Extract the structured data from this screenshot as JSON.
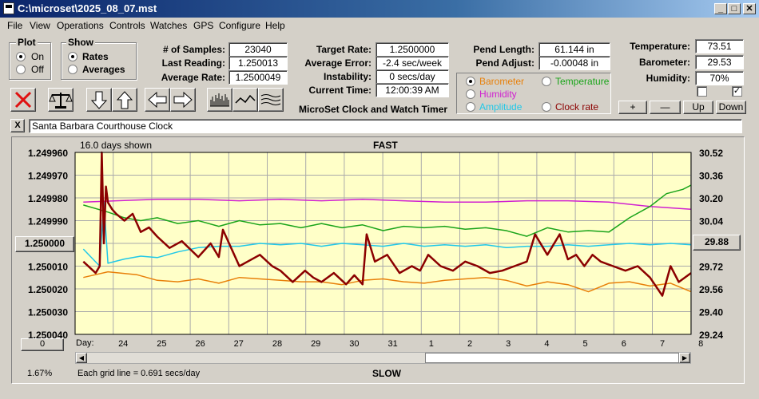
{
  "window": {
    "title": "C:\\microset\\2025_08_07.mst"
  },
  "menu": [
    "File",
    "View",
    "Operations",
    "Controls",
    "Watches",
    "GPS",
    "Configure",
    "Help"
  ],
  "plot_group": {
    "title": "Plot",
    "on": "On",
    "off": "Off",
    "selected": "On"
  },
  "show_group": {
    "title": "Show",
    "rates": "Rates",
    "averages": "Averages",
    "selected": "Rates"
  },
  "stats": {
    "samples_label": "# of Samples:",
    "samples": "23040",
    "last_label": "Last Reading:",
    "last": "1.250013",
    "avg_label": "Average Rate:",
    "avg": "1.2500049"
  },
  "rate": {
    "target_label": "Target Rate:",
    "target": "1.2500000",
    "error_label": "Average Error:",
    "error": "-2.4 sec/week",
    "instab_label": "Instability:",
    "instab": "0 secs/day",
    "time_label": "Current Time:",
    "time": "12:00:39 AM"
  },
  "pend": {
    "length_label": "Pend Length:",
    "length": "61.144 in",
    "adjust_label": "Pend Adjust:",
    "adjust": "-0.00048 in"
  },
  "env": {
    "temp_label": "Temperature:",
    "temp": "73.51",
    "baro_label": "Barometer:",
    "baro": "29.53",
    "hum_label": "Humidity:",
    "hum": "70%"
  },
  "aux_select": {
    "options": [
      {
        "label": "Barometer",
        "color": "#e8800a",
        "selected": true
      },
      {
        "label": "Temperature",
        "color": "#1aa41a",
        "selected": false
      },
      {
        "label": "Humidity",
        "color": "#d020d0",
        "selected": false
      },
      {
        "label": "Amplitude",
        "color": "#20c8e8",
        "selected": false
      },
      {
        "label": "Clock rate",
        "color": "#8b0000",
        "selected": false
      }
    ]
  },
  "env_buttons": {
    "plus": "+",
    "minus": "—",
    "up": "Up",
    "down": "Down"
  },
  "checks": {
    "left": false,
    "right": true
  },
  "program_title": "MicroSet Clock and Watch Timer",
  "clock_name": "Santa Barbara Courthouse Clock",
  "clear_x": "X",
  "chart_data": {
    "type": "line",
    "top_label": "FAST",
    "bottom_label": "SLOW",
    "days_shown": "16.0 days shown",
    "grid_note": "Each grid line = 0.691 secs/day",
    "percent": "1.67%",
    "left_axis": {
      "ticks": [
        "1.249960",
        "1.249970",
        "1.249980",
        "1.249990",
        "1.250000",
        "1.250010",
        "1.250020",
        "1.250030",
        "1.250040"
      ],
      "center_value": "1.250000",
      "range": [
        1.24996,
        1.25004
      ]
    },
    "right_axis": {
      "ticks": [
        "30.52",
        "30.36",
        "30.20",
        "30.04",
        "29.88",
        "29.72",
        "29.56",
        "29.40",
        "29.24"
      ],
      "center_value": "29.88",
      "range": [
        29.24,
        30.52
      ]
    },
    "x_axis": {
      "label": "Day:",
      "ticks": [
        "24",
        "25",
        "26",
        "27",
        "28",
        "29",
        "30",
        "31",
        "1",
        "2",
        "3",
        "4",
        "5",
        "6",
        "7",
        "8"
      ]
    },
    "scroll_value": "0",
    "series": [
      {
        "name": "Clock rate",
        "color": "#8b0000",
        "x": [
          23.2,
          23.5,
          23.6,
          23.65,
          23.7,
          23.75,
          23.8,
          23.9,
          24.0,
          24.2,
          24.4,
          24.6,
          24.8,
          25.0,
          25.3,
          25.6,
          26.0,
          26.3,
          26.5,
          26.6,
          26.8,
          27.0,
          27.2,
          27.5,
          27.8,
          28.0,
          28.3,
          28.6,
          28.8,
          29.0,
          29.3,
          29.6,
          29.8,
          30.0,
          30.1,
          30.3,
          30.6,
          30.9,
          31.2,
          31.4,
          31.6,
          31.9,
          32.2,
          32.5,
          32.8,
          33.1,
          33.4,
          33.7,
          34.0,
          34.2,
          34.5,
          34.8,
          35.0,
          35.2,
          35.4,
          35.6,
          35.8,
          36.1,
          36.4,
          36.7,
          37.0,
          37.3,
          37.5,
          37.7,
          38.0
        ],
        "y": [
          1.250008,
          1.250013,
          1.25001,
          1.24996,
          1.25,
          1.249975,
          1.249982,
          1.249985,
          1.249987,
          1.24999,
          1.249987,
          1.249995,
          1.249993,
          1.249997,
          1.250002,
          1.249999,
          1.250006,
          1.25,
          1.250006,
          1.249994,
          1.250002,
          1.25001,
          1.250008,
          1.250005,
          1.25001,
          1.250012,
          1.250017,
          1.250012,
          1.250015,
          1.250017,
          1.250013,
          1.250018,
          1.250014,
          1.250018,
          1.249996,
          1.250008,
          1.250005,
          1.250013,
          1.25001,
          1.250012,
          1.250005,
          1.25001,
          1.250012,
          1.250008,
          1.25001,
          1.250013,
          1.250012,
          1.25001,
          1.250008,
          1.249996,
          1.250005,
          1.249996,
          1.250007,
          1.250005,
          1.25001,
          1.250005,
          1.250008,
          1.25001,
          1.250012,
          1.25001,
          1.250015,
          1.250023,
          1.25001,
          1.250017,
          1.250013
        ]
      },
      {
        "name": "Barometer",
        "color": "#e8800a",
        "x": [
          23.2,
          23.8,
          24.5,
          25.0,
          25.5,
          26.0,
          26.5,
          27.0,
          27.5,
          28.0,
          28.5,
          29.0,
          29.5,
          30.0,
          30.5,
          31.0,
          31.5,
          32.0,
          32.5,
          33.0,
          33.5,
          34.0,
          34.5,
          35.0,
          35.5,
          36.0,
          36.5,
          37.0,
          37.5,
          38.0
        ],
        "y": [
          29.64,
          29.68,
          29.66,
          29.62,
          29.61,
          29.63,
          29.6,
          29.64,
          29.63,
          29.62,
          29.61,
          29.61,
          29.59,
          29.62,
          29.63,
          29.61,
          29.6,
          29.62,
          29.63,
          29.64,
          29.62,
          29.58,
          29.61,
          29.59,
          29.54,
          29.6,
          29.61,
          29.58,
          29.6,
          29.54
        ]
      },
      {
        "name": "Temperature",
        "color": "#1aa41a",
        "x": [
          23.2,
          23.8,
          24.2,
          24.6,
          25.0,
          25.5,
          26.0,
          26.5,
          27.0,
          27.5,
          28.0,
          28.5,
          29.0,
          29.5,
          30.0,
          30.5,
          31.0,
          31.5,
          32.0,
          32.5,
          33.0,
          33.5,
          34.0,
          34.5,
          35.0,
          35.5,
          36.0,
          36.5,
          37.0,
          37.4,
          37.8,
          38.0
        ],
        "y": [
          30.15,
          30.1,
          30.06,
          30.04,
          30.06,
          30.02,
          30.04,
          30.0,
          30.04,
          30.01,
          30.02,
          29.99,
          30.02,
          29.99,
          30.01,
          29.97,
          30.0,
          29.99,
          30.0,
          29.98,
          29.99,
          29.97,
          29.93,
          29.99,
          29.96,
          29.97,
          29.96,
          30.06,
          30.14,
          30.23,
          30.26,
          30.29
        ]
      },
      {
        "name": "Humidity",
        "color": "#d020d0",
        "x": [
          23.2,
          24.0,
          25.0,
          26.0,
          27.0,
          28.0,
          29.0,
          30.0,
          31.0,
          32.0,
          33.0,
          34.0,
          35.0,
          36.0,
          37.0,
          38.0
        ],
        "y": [
          30.17,
          30.18,
          30.19,
          30.19,
          30.18,
          30.19,
          30.18,
          30.19,
          30.18,
          30.17,
          30.17,
          30.18,
          30.18,
          30.17,
          30.14,
          30.12
        ]
      },
      {
        "name": "Amplitude",
        "color": "#20c8e8",
        "x": [
          23.2,
          23.6,
          23.7,
          23.8,
          24.2,
          24.6,
          25.0,
          25.5,
          26.0,
          26.5,
          27.0,
          27.5,
          28.0,
          28.5,
          29.0,
          29.5,
          30.0,
          30.5,
          31.0,
          31.5,
          32.0,
          32.5,
          33.0,
          33.5,
          34.0,
          34.5,
          35.0,
          35.5,
          36.0,
          36.5,
          37.0,
          37.5,
          38.0
        ],
        "y": [
          29.84,
          29.72,
          30.17,
          29.74,
          29.77,
          29.79,
          29.78,
          29.82,
          29.85,
          29.86,
          29.86,
          29.88,
          29.87,
          29.88,
          29.86,
          29.88,
          29.87,
          29.86,
          29.88,
          29.86,
          29.87,
          29.86,
          29.87,
          29.85,
          29.86,
          29.86,
          29.87,
          29.86,
          29.87,
          29.88,
          29.87,
          29.88,
          29.87
        ]
      }
    ]
  }
}
